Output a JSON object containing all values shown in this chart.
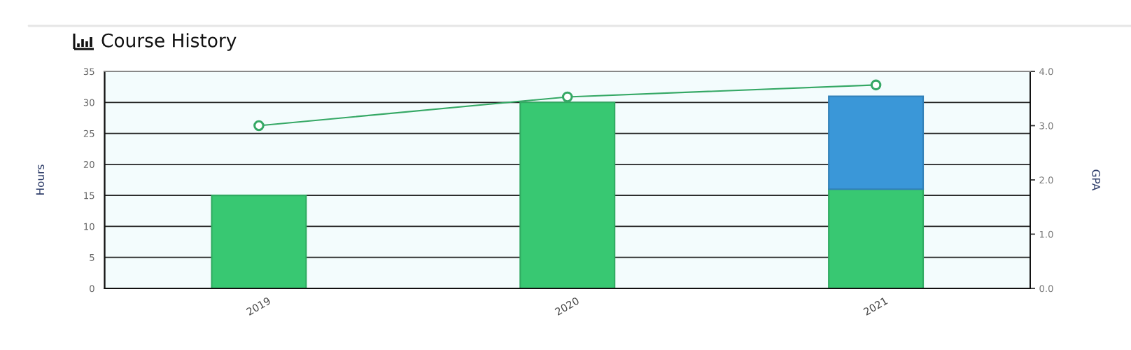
{
  "chart_data": {
    "type": "bar",
    "title": "Course History",
    "ylabel": "Hours",
    "y2label": "GPA",
    "categories": [
      "2019",
      "2020",
      "2021"
    ],
    "stacked": true,
    "series": [
      {
        "color": "#38c872",
        "values": [
          15,
          30,
          16
        ]
      },
      {
        "color": "#3a97d8",
        "values": [
          null,
          null,
          15
        ]
      },
      {
        "type": "line",
        "axis": "y2",
        "color": "#35a865",
        "values": [
          3.0,
          3.53,
          3.75
        ]
      }
    ],
    "marker": "circle",
    "ylim": [
      0,
      35
    ],
    "yticks": [
      0,
      5,
      10,
      15,
      20,
      25,
      30,
      35
    ],
    "y2lim": [
      0,
      4
    ],
    "y2ticks": [
      {
        "value": 0,
        "label": "0.0"
      },
      {
        "value": 1,
        "label": "1.0"
      },
      {
        "value": 2,
        "label": "2.0"
      },
      {
        "value": 3,
        "label": "3.0"
      },
      {
        "value": 4,
        "label": "4.0"
      }
    ],
    "grid": "y"
  }
}
